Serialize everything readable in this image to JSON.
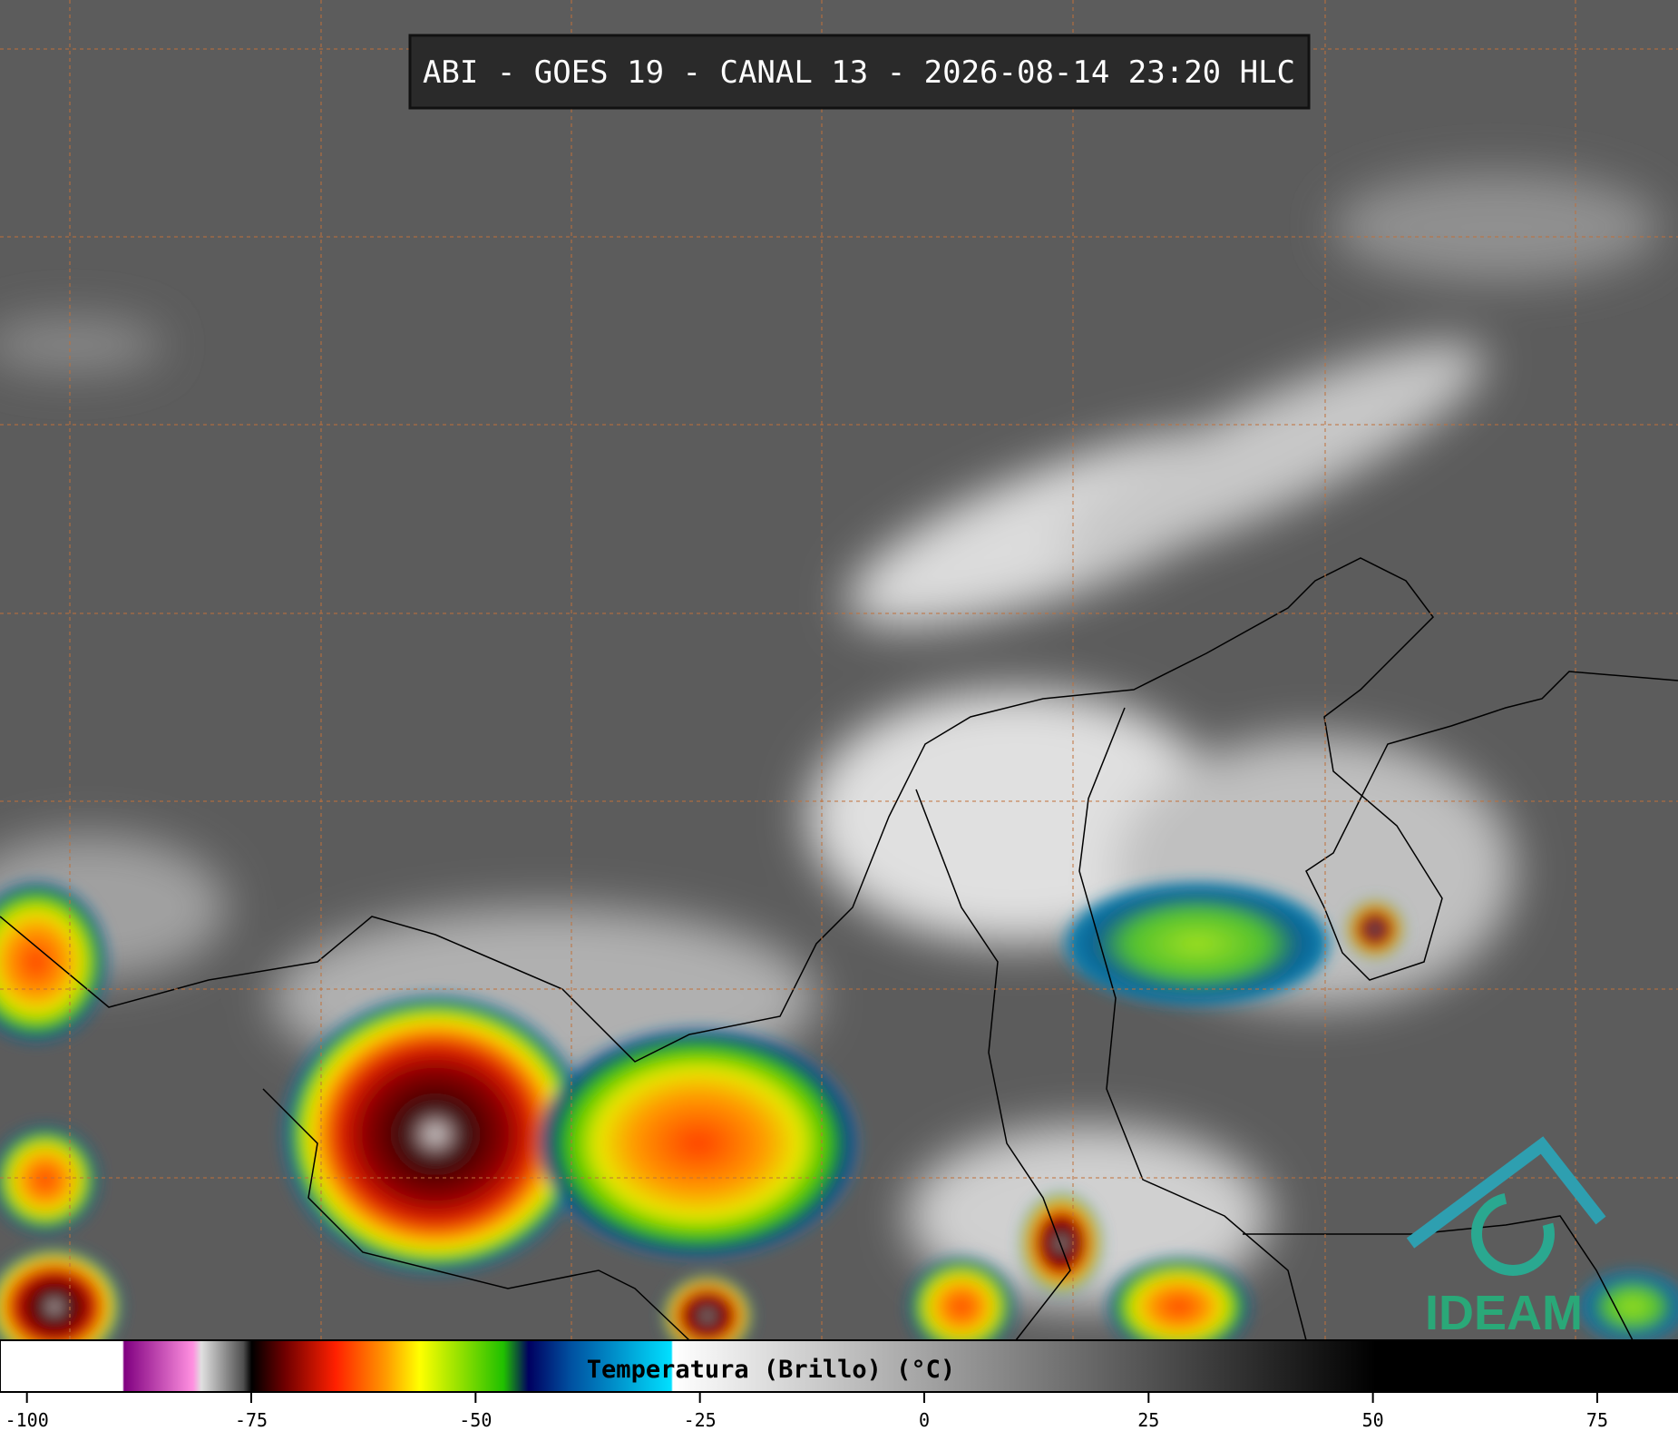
{
  "header": {
    "title": "ABI - GOES 19 - CANAL 13 - 2026-08-14 23:20 HLC"
  },
  "colorbar": {
    "label": "Temperatura (Brillo) (°C)",
    "lim": [
      -103,
      84
    ],
    "ticks": [
      -100,
      -75,
      -50,
      -25,
      0,
      25,
      50,
      75
    ]
  },
  "logo": {
    "text": "IDEAM"
  }
}
